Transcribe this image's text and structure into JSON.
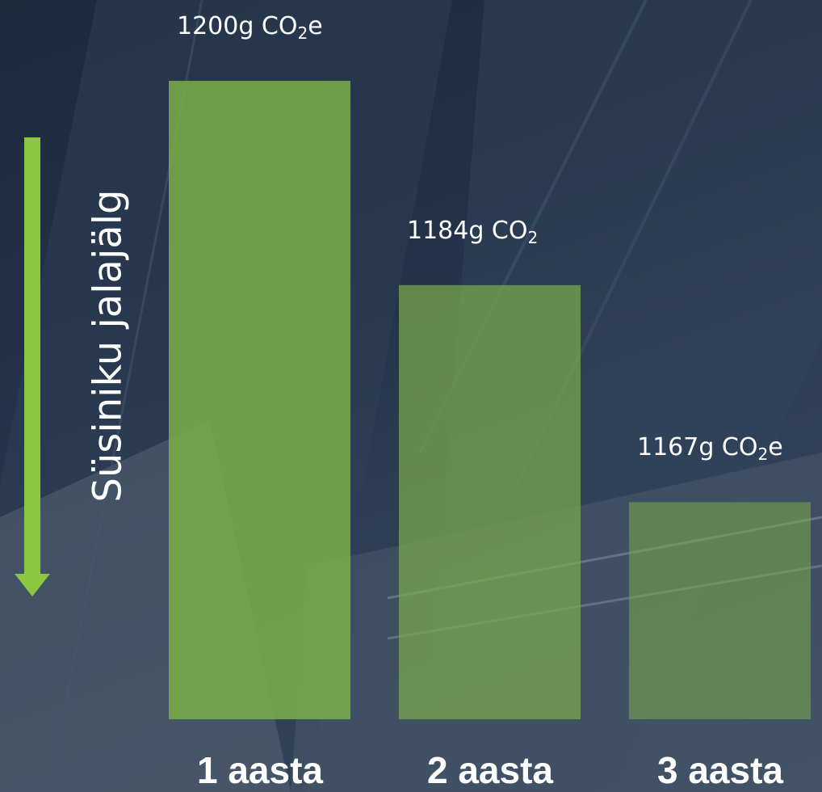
{
  "colors": {
    "bar": "#7aab4b",
    "arrow": "#8cc63f",
    "text": "#ffffff",
    "background": "#223148"
  },
  "axis_label": "Süsiniku jalajälg",
  "chart_data": {
    "type": "bar",
    "title": "",
    "ylabel": "Süsiniku jalajälg",
    "categories": [
      "1 aasta",
      "2 aasta",
      "3 aasta"
    ],
    "values": [
      1200,
      1184,
      1167
    ],
    "data_labels": [
      {
        "value": "1200g",
        "unit": "CO",
        "sub": "2",
        "suffix": "e"
      },
      {
        "value": "1184g",
        "unit": "CO",
        "sub": "2",
        "suffix": ""
      },
      {
        "value": "1167g",
        "unit": "CO",
        "sub": "2",
        "suffix": "e"
      }
    ],
    "ylim": [
      1150,
      1200
    ],
    "grid": false,
    "legend": "none"
  }
}
